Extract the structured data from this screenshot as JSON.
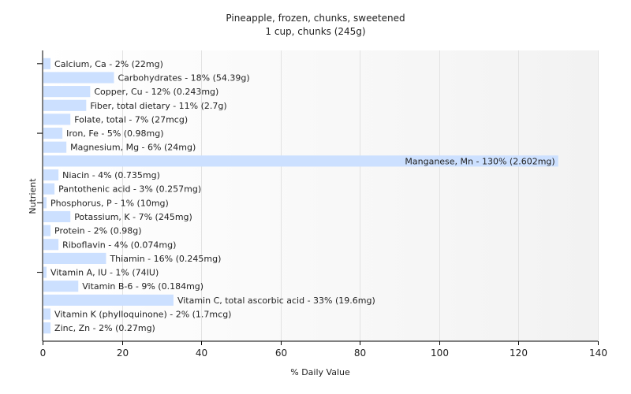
{
  "chart_data": {
    "type": "bar",
    "orientation": "horizontal",
    "title": "Pineapple, frozen, chunks, sweetened",
    "subtitle": "1 cup, chunks (245g)",
    "xlabel": "% Daily Value",
    "ylabel": "Nutrient",
    "xlim": [
      0,
      140
    ],
    "xticks": [
      0,
      20,
      40,
      60,
      80,
      100,
      120,
      140
    ],
    "grid": true,
    "legend": "none",
    "bar_color": "#cce0ff",
    "categories": [
      "Calcium, Ca",
      "Carbohydrates",
      "Copper, Cu",
      "Fiber, total dietary",
      "Folate, total",
      "Iron, Fe",
      "Magnesium, Mg",
      "Manganese, Mn",
      "Niacin",
      "Pantothenic acid",
      "Phosphorus, P",
      "Potassium, K",
      "Protein",
      "Riboflavin",
      "Thiamin",
      "Vitamin A, IU",
      "Vitamin B-6",
      "Vitamin C, total ascorbic acid",
      "Vitamin K (phylloquinone)",
      "Zinc, Zn"
    ],
    "values": [
      2,
      18,
      12,
      11,
      7,
      5,
      6,
      130,
      4,
      3,
      1,
      7,
      2,
      4,
      16,
      1,
      9,
      33,
      2,
      2
    ],
    "labels": [
      "Calcium, Ca - 2% (22mg)",
      "Carbohydrates - 18% (54.39g)",
      "Copper, Cu - 12% (0.243mg)",
      "Fiber, total dietary - 11% (2.7g)",
      "Folate, total - 7% (27mcg)",
      "Iron, Fe - 5% (0.98mg)",
      "Magnesium, Mg - 6% (24mg)",
      "Manganese, Mn - 130% (2.602mg)",
      "Niacin - 4% (0.735mg)",
      "Pantothenic acid - 3% (0.257mg)",
      "Phosphorus, P - 1% (10mg)",
      "Potassium, K - 7% (245mg)",
      "Protein - 2% (0.98g)",
      "Riboflavin - 4% (0.074mg)",
      "Thiamin - 16% (0.245mg)",
      "Vitamin A, IU - 1% (74IU)",
      "Vitamin B-6 - 9% (0.184mg)",
      "Vitamin C, total ascorbic acid - 33% (19.6mg)",
      "Vitamin K (phylloquinone) - 2% (1.7mcg)",
      "Zinc, Zn - 2% (0.27mg)"
    ]
  }
}
